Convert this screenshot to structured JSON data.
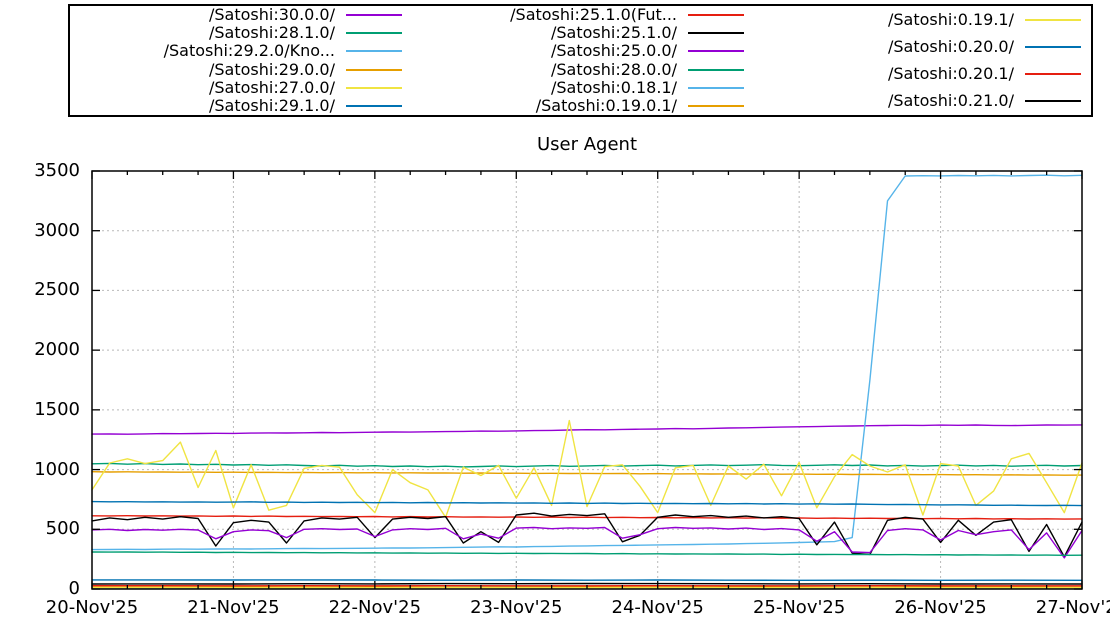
{
  "chart_data": {
    "type": "line",
    "title": "User Agent",
    "grid": true,
    "legend": {
      "position": "top",
      "border": true,
      "columns": [
        6,
        6,
        4
      ]
    },
    "x_axis": {
      "tick_labels": [
        "20-Nov'25",
        "21-Nov'25",
        "22-Nov'25",
        "23-Nov'25",
        "24-Nov'25",
        "25-Nov'25",
        "26-Nov'25",
        "27-Nov'25"
      ],
      "range_days": [
        0,
        7
      ],
      "minor_ticks_per_day": 4
    },
    "y_axis": {
      "ticks": [
        0,
        500,
        1000,
        1500,
        2000,
        2500,
        3000,
        3500
      ],
      "range": [
        0,
        3500
      ]
    },
    "colors": {
      "axis": "#000000",
      "grid_line": "#b9b9b9",
      "background": "#ffffff"
    },
    "series": [
      {
        "name": "/Satoshi:30.0.0/",
        "color": "#9400d3",
        "values": [
          1297,
          1298,
          1296,
          1299,
          1301,
          1300,
          1302,
          1304,
          1303,
          1305,
          1307,
          1306,
          1308,
          1310,
          1309,
          1311,
          1313,
          1315,
          1314,
          1316,
          1318,
          1320,
          1322,
          1321,
          1324,
          1326,
          1328,
          1331,
          1334,
          1333,
          1336,
          1338,
          1340,
          1343,
          1341,
          1345,
          1348,
          1350,
          1353,
          1356,
          1358,
          1360,
          1363,
          1365,
          1367,
          1369,
          1371,
          1370,
          1372,
          1371,
          1373,
          1370,
          1368,
          1371,
          1373,
          1372,
          1374
        ]
      },
      {
        "name": "/Satoshi:28.1.0/",
        "color": "#009e73",
        "values": [
          1048,
          1052,
          1045,
          1050,
          1043,
          1047,
          1041,
          1044,
          1038,
          1042,
          1036,
          1040,
          1034,
          1030,
          1036,
          1028,
          1032,
          1026,
          1030,
          1024,
          1028,
          1022,
          1026,
          1031,
          1025,
          1029,
          1033,
          1027,
          1031,
          1035,
          1029,
          1033,
          1037,
          1031,
          1035,
          1039,
          1033,
          1037,
          1041,
          1035,
          1032,
          1036,
          1040,
          1034,
          1038,
          1031,
          1035,
          1029,
          1033,
          1037,
          1031,
          1035,
          1028,
          1032,
          1036,
          1030,
          1034
        ]
      },
      {
        "name": "/Satoshi:29.2.0/Kno...",
        "color": "#56b4e9",
        "values": [
          330,
          331,
          332,
          331,
          333,
          334,
          333,
          335,
          336,
          335,
          337,
          338,
          339,
          338,
          340,
          341,
          342,
          344,
          343,
          345,
          347,
          349,
          351,
          353,
          352,
          355,
          357,
          359,
          361,
          363,
          365,
          367,
          369,
          371,
          373,
          375,
          377,
          380,
          383,
          386,
          389,
          393,
          397,
          430,
          1750,
          3250,
          3458,
          3461,
          3459,
          3462,
          3460,
          3463,
          3459,
          3462,
          3465,
          3460,
          3464
        ]
      },
      {
        "name": "/Satoshi:29.0.0/",
        "color": "#e69f00",
        "values": [
          982,
          980,
          981,
          979,
          980,
          978,
          979,
          977,
          978,
          976,
          977,
          975,
          976,
          974,
          975,
          973,
          974,
          972,
          973,
          971,
          972,
          970,
          971,
          969,
          970,
          968,
          969,
          967,
          968,
          966,
          967,
          965,
          966,
          964,
          965,
          963,
          964,
          962,
          963,
          961,
          962,
          960,
          961,
          959,
          960,
          958,
          959,
          957,
          958,
          956,
          957,
          955,
          956,
          954,
          955,
          953,
          954
        ]
      },
      {
        "name": "/Satoshi:27.0.0/",
        "color": "#f0e442",
        "values": [
          830,
          1055,
          1090,
          1050,
          1075,
          1230,
          850,
          1160,
          680,
          1040,
          660,
          700,
          1010,
          1035,
          1020,
          790,
          640,
          1000,
          890,
          830,
          600,
          1020,
          950,
          1035,
          760,
          1015,
          700,
          1410,
          690,
          1025,
          1040,
          860,
          640,
          1015,
          1035,
          700,
          1030,
          920,
          1045,
          780,
          1060,
          680,
          940,
          1125,
          1030,
          980,
          1040,
          620,
          1050,
          1030,
          700,
          820,
          1090,
          1135,
          890,
          640,
          1055
        ]
      },
      {
        "name": "/Satoshi:29.1.0/",
        "color": "#0072b2",
        "values": [
          732,
          730,
          731,
          729,
          730,
          728,
          729,
          727,
          728,
          730,
          726,
          728,
          725,
          727,
          724,
          726,
          723,
          725,
          722,
          724,
          721,
          723,
          720,
          722,
          719,
          721,
          718,
          720,
          717,
          719,
          716,
          718,
          715,
          717,
          714,
          716,
          713,
          715,
          712,
          714,
          711,
          713,
          710,
          712,
          709,
          707,
          708,
          706,
          704,
          705,
          703,
          701,
          702,
          700,
          699,
          701,
          698
        ]
      },
      {
        "name": "/Satoshi:25.1.0(Fut...",
        "color": "#e51e10",
        "values": [
          613,
          612,
          614,
          611,
          613,
          610,
          612,
          609,
          611,
          608,
          610,
          607,
          609,
          606,
          608,
          605,
          607,
          604,
          606,
          603,
          605,
          602,
          604,
          601,
          603,
          600,
          602,
          599,
          601,
          598,
          600,
          597,
          599,
          596,
          598,
          595,
          597,
          594,
          596,
          593,
          595,
          592,
          594,
          591,
          593,
          590,
          592,
          589,
          591,
          588,
          590,
          587,
          589,
          586,
          588,
          585,
          587
        ]
      },
      {
        "name": "/Satoshi:25.1.0/",
        "color": "#000000",
        "values": [
          570,
          595,
          580,
          600,
          585,
          605,
          590,
          360,
          555,
          575,
          560,
          385,
          570,
          595,
          585,
          600,
          430,
          585,
          600,
          590,
          605,
          385,
          480,
          390,
          620,
          635,
          610,
          625,
          615,
          630,
          395,
          450,
          600,
          620,
          605,
          615,
          600,
          610,
          595,
          605,
          590,
          370,
          560,
          300,
          290,
          575,
          600,
          585,
          390,
          575,
          450,
          560,
          580,
          315,
          540,
          270,
          560
        ]
      },
      {
        "name": "/Satoshi:25.0.0/",
        "color": "#9400d3",
        "values": [
          495,
          500,
          490,
          498,
          492,
          500,
          494,
          420,
          480,
          495,
          488,
          430,
          500,
          505,
          498,
          502,
          440,
          495,
          505,
          498,
          508,
          420,
          460,
          425,
          510,
          515,
          505,
          512,
          508,
          515,
          425,
          455,
          505,
          515,
          508,
          512,
          502,
          510,
          498,
          506,
          495,
          400,
          480,
          310,
          305,
          490,
          505,
          495,
          410,
          490,
          455,
          480,
          495,
          330,
          470,
          260,
          490
        ]
      },
      {
        "name": "/Satoshi:28.0.0/",
        "color": "#009e73",
        "values": [
          310,
          309,
          310,
          308,
          309,
          307,
          308,
          306,
          307,
          305,
          306,
          304,
          305,
          303,
          304,
          302,
          303,
          301,
          302,
          300,
          301,
          299,
          300,
          298,
          299,
          297,
          298,
          296,
          297,
          295,
          296,
          294,
          295,
          293,
          294,
          292,
          293,
          291,
          292,
          290,
          291,
          289,
          290,
          288,
          289,
          287,
          288,
          286,
          287,
          285,
          286,
          284,
          285,
          283,
          284,
          282,
          283
        ]
      },
      {
        "name": "/Satoshi:0.18.1/",
        "color": "#56b4e9",
        "values": [
          8,
          8,
          9,
          17,
          16,
          9,
          8,
          9,
          8
        ]
      },
      {
        "name": "/Satoshi:0.19.0.1/",
        "color": "#e69f00",
        "values": [
          16,
          15,
          15,
          14,
          15,
          15,
          14,
          15,
          14
        ]
      },
      {
        "name": "/Satoshi:0.19.1/",
        "color": "#f0e442",
        "values": [
          12,
          12,
          11,
          12,
          11,
          12,
          11,
          12,
          11
        ]
      },
      {
        "name": "/Satoshi:0.20.0/",
        "color": "#0072b2",
        "values": [
          76,
          76,
          75,
          76,
          75,
          74,
          75,
          74,
          75,
          74,
          73,
          74,
          73,
          74,
          73
        ]
      },
      {
        "name": "/Satoshi:0.20.1/",
        "color": "#e51e10",
        "values": [
          28,
          28,
          27,
          28,
          27,
          28,
          27,
          27,
          28,
          27,
          27,
          28,
          27,
          27,
          27
        ]
      },
      {
        "name": "/Satoshi:0.21.0/",
        "color": "#000000",
        "values": [
          42,
          43,
          42,
          44,
          43,
          45,
          44,
          46,
          45,
          44,
          43,
          44,
          42,
          43,
          42
        ]
      }
    ]
  }
}
